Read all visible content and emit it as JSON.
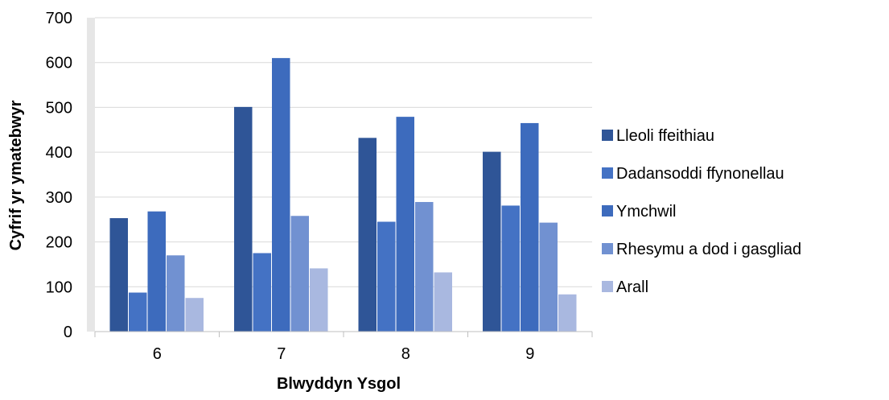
{
  "chart_data": {
    "type": "bar",
    "title": "",
    "xlabel": "Blwyddyn Ysgol",
    "ylabel": "Cyfrif yr ymatebwyr",
    "categories": [
      "6",
      "7",
      "8",
      "9"
    ],
    "ylim": [
      0,
      700
    ],
    "yticks": [
      0,
      100,
      200,
      300,
      400,
      500,
      600,
      700
    ],
    "grid": true,
    "legend_position": "right",
    "series": [
      {
        "name": "Lleoli ffeithiau",
        "color": "#2F5597",
        "values": [
          253,
          501,
          432,
          401
        ]
      },
      {
        "name": "Dadansoddi ffynonellau",
        "color": "#4472C4",
        "values": [
          87,
          175,
          245,
          281
        ]
      },
      {
        "name": "Ymchwil",
        "color": "#3D6BBD",
        "values": [
          268,
          610,
          479,
          465
        ]
      },
      {
        "name": "Rhesymu a dod i gasgliad",
        "color": "#7191D1",
        "values": [
          170,
          258,
          289,
          243
        ]
      },
      {
        "name": "Arall",
        "color": "#A9B8E0",
        "values": [
          75,
          141,
          132,
          83
        ]
      }
    ]
  }
}
